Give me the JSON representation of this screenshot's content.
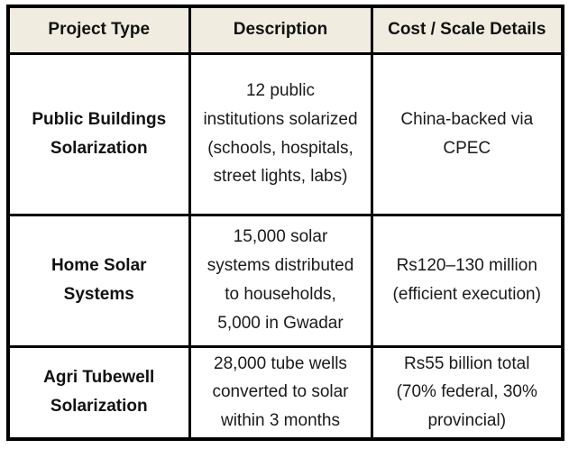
{
  "table": {
    "title": "solar-projects-table",
    "columns": [
      "Project Type",
      "Description",
      "Cost / Scale Details"
    ],
    "rows": [
      {
        "project_type": "Public Buildings\nSolarization",
        "description": "12 public\ninstitutions solarized\n(schools, hospitals,\nstreet lights, labs)",
        "cost_scale": "China-backed via\nCPEC"
      },
      {
        "project_type": "Home Solar\nSystems",
        "description": "15,000 solar\nsystems distributed\nto households,\n5,000 in Gwadar",
        "cost_scale": "Rs120–130 million\n(efficient execution)"
      },
      {
        "project_type": "Agri Tubewell\nSolarization",
        "description": "28,000 tube wells\nconverted to solar\nwithin 3 months",
        "cost_scale": "Rs55 billion total\n(70% federal, 30%\nprovincial)"
      }
    ],
    "colors": {
      "header_bg": "#F0EDE0",
      "border": "#000000",
      "text": "#1A1A1A"
    }
  }
}
